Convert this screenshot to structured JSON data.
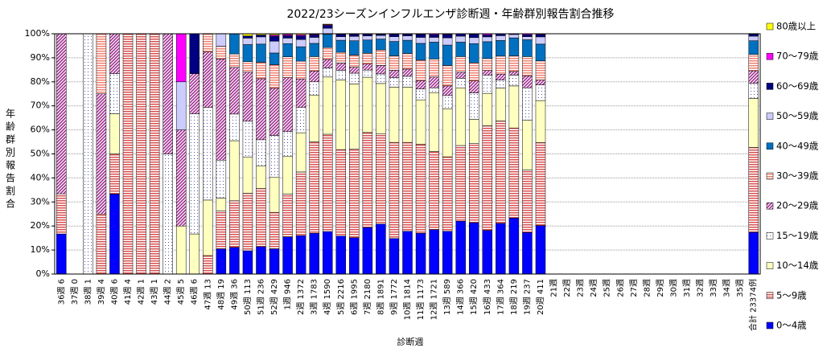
{
  "chart_data": {
    "type": "stacked_bar",
    "title": "2022/23シーズンインフルエンザ診断週・年齢群別報告割合推移",
    "x_label": "診断週",
    "y_label": "年齢群別報告割合",
    "categories": [
      "36週 6",
      "37週 0",
      "38週 1",
      "39週 4",
      "40週 6",
      "41週 4",
      "42週 1",
      "43週 1",
      "44週 2",
      "45週 5",
      "46週 6",
      "47週 13",
      "48週 19",
      "49週 36",
      "50週 113",
      "51週 236",
      "52週 429",
      "1週 946",
      "2週 1372",
      "3週 1783",
      "4週 1590",
      "5週 2216",
      "6週 1995",
      "7週 2180",
      "8週 1891",
      "9週 1772",
      "10週 1814",
      "11週 1173",
      "12週 1721",
      "13週 589",
      "14週 366",
      "15週 420",
      "16週 433",
      "17週 364",
      "18週 219",
      "19週 237",
      "20週 411",
      "21週",
      "22週",
      "23週",
      "24週",
      "25週",
      "26週",
      "27週",
      "28週",
      "29週",
      "30週",
      "31週",
      "32週",
      "33週",
      "34週",
      "35週",
      "合計 23374例"
    ],
    "ylim": [
      0,
      100
    ],
    "yticks": [
      {
        "value": 0,
        "label": "0%"
      },
      {
        "value": 10,
        "label": "10%"
      },
      {
        "value": 20,
        "label": "20%"
      },
      {
        "value": 30,
        "label": "30%"
      },
      {
        "value": 40,
        "label": "40%"
      },
      {
        "value": 50,
        "label": "50%"
      },
      {
        "value": 60,
        "label": "60%"
      },
      {
        "value": 70,
        "label": "70%"
      },
      {
        "value": 80,
        "label": "80%"
      },
      {
        "value": 90,
        "label": "90%"
      },
      {
        "value": 100,
        "label": "100%"
      }
    ],
    "grid": true,
    "legend": "right",
    "series": [
      {
        "name": "0〜4歳",
        "color": "#0000ff",
        "pattern": "solid",
        "values": [
          16.7,
          0,
          0,
          0,
          33.3,
          0,
          0,
          0,
          0,
          0,
          0,
          0,
          10.5,
          11.1,
          9.7,
          11.4,
          10.5,
          15.5,
          16.0,
          17,
          17.7,
          15.8,
          15.1,
          19.4,
          20.8,
          14.8,
          17.8,
          17,
          18.5,
          17.8,
          22,
          21.4,
          18.2,
          21.1,
          23.3,
          17.3,
          20.2,
          null,
          null,
          null,
          null,
          null,
          null,
          null,
          null,
          null,
          null,
          null,
          null,
          null,
          null,
          null,
          17.4
        ]
      },
      {
        "name": "5〜9歳",
        "color": "#d85050",
        "pattern": "hstripe",
        "values": [
          16.7,
          0,
          0,
          25,
          16.7,
          100,
          100,
          100,
          0,
          0,
          0,
          7.7,
          15.8,
          19.4,
          23.9,
          24.2,
          15.2,
          17.8,
          26.5,
          38,
          40.5,
          36,
          37,
          39.5,
          37.5,
          40,
          37,
          37,
          32.5,
          31,
          31.5,
          33,
          43.5,
          42.6,
          37.5,
          26,
          34.5,
          null,
          null,
          null,
          null,
          null,
          null,
          null,
          null,
          null,
          null,
          null,
          null,
          null,
          null,
          null,
          35.3
        ]
      },
      {
        "name": "10〜14歳",
        "color": "#ffffc0",
        "pattern": "solid",
        "values": [
          0,
          0,
          0,
          0,
          16.7,
          0,
          0,
          0,
          0,
          20,
          16.7,
          23.1,
          5.3,
          25,
          15,
          9.3,
          14.5,
          15.6,
          16.3,
          19.5,
          23.8,
          29,
          27,
          23,
          21,
          23,
          23,
          18.5,
          24.5,
          20,
          24,
          10,
          13.5,
          13.7,
          17.5,
          20.7,
          17.5,
          null,
          null,
          null,
          null,
          null,
          null,
          null,
          null,
          null,
          null,
          null,
          null,
          null,
          null,
          null,
          20.4
        ]
      },
      {
        "name": "15〜19歳",
        "color": "#5050a0",
        "pattern": "dots",
        "values": [
          0,
          0,
          100,
          0,
          16.7,
          0,
          0,
          0,
          50,
          0,
          50,
          38.5,
          15.8,
          11.1,
          15,
          11,
          17.5,
          10.4,
          10.5,
          5.5,
          3.8,
          4,
          4.5,
          3,
          4,
          4,
          4.5,
          4.5,
          2,
          5.5,
          4,
          11,
          7.5,
          3.3,
          4.5,
          13.5,
          6.5,
          null,
          null,
          null,
          null,
          null,
          null,
          null,
          null,
          null,
          null,
          null,
          null,
          null,
          null,
          null,
          6.3
        ]
      },
      {
        "name": "20〜29歳",
        "color": "#a03090",
        "pattern": "diag",
        "values": [
          66.6,
          0,
          0,
          50,
          16.6,
          0,
          0,
          0,
          50,
          40,
          16.7,
          23.1,
          42.1,
          19.4,
          20.4,
          25.4,
          19.6,
          22.4,
          11.9,
          4.5,
          3.5,
          3,
          2.5,
          2.5,
          3.5,
          3,
          3,
          3.5,
          4.5,
          4,
          2.5,
          5,
          2,
          2.5,
          1.5,
          5,
          2,
          null,
          null,
          null,
          null,
          null,
          null,
          null,
          null,
          null,
          null,
          null,
          null,
          null,
          null,
          null,
          5.2
        ]
      },
      {
        "name": "30〜39歳",
        "color": "#f08070",
        "pattern": "hstripe",
        "values": [
          0,
          0,
          0,
          25,
          0,
          0,
          0,
          0,
          0,
          0,
          0,
          7.7,
          5.3,
          5.6,
          4.4,
          6.8,
          9.8,
          8.7,
          7.4,
          6,
          5,
          4.5,
          5,
          4.5,
          6.5,
          6,
          6.5,
          8.5,
          7.5,
          8.5,
          6.5,
          7.5,
          5,
          7.5,
          6.5,
          8,
          8,
          null,
          null,
          null,
          null,
          null,
          null,
          null,
          null,
          null,
          null,
          null,
          null,
          null,
          null,
          null,
          6.8
        ]
      },
      {
        "name": "40〜49歳",
        "color": "#0070c0",
        "pattern": "solid",
        "values": [
          0,
          0,
          0,
          0,
          0,
          0,
          0,
          0,
          0,
          0,
          0,
          0,
          0,
          8.3,
          7.1,
          7.6,
          4.9,
          5.5,
          6,
          5.5,
          5.5,
          5,
          6,
          5.5,
          4.5,
          6,
          5.5,
          7,
          7,
          8.5,
          6,
          8,
          7,
          6.5,
          7.5,
          7,
          7,
          null,
          null,
          null,
          null,
          null,
          null,
          null,
          null,
          null,
          null,
          null,
          null,
          null,
          null,
          null,
          5.7
        ]
      },
      {
        "name": "50〜59歳",
        "color": "#ccccff",
        "pattern": "solid",
        "values": [
          0,
          0,
          0,
          0,
          0,
          0,
          0,
          0,
          0,
          20,
          0,
          0,
          5.3,
          0,
          2.7,
          3.0,
          4.9,
          2.3,
          3,
          2.5,
          2.5,
          1.5,
          1.8,
          1.7,
          1.5,
          2,
          1.8,
          2.5,
          2,
          3,
          2.5,
          2.5,
          2,
          2,
          1.4,
          1.3,
          3,
          null,
          null,
          null,
          null,
          null,
          null,
          null,
          null,
          null,
          null,
          null,
          null,
          null,
          null,
          null,
          1.9
        ]
      },
      {
        "name": "60〜69歳",
        "color": "#000080",
        "pattern": "solid",
        "values": [
          0,
          0,
          0,
          0,
          0,
          0,
          0,
          0,
          0,
          0,
          16.6,
          0,
          0,
          0,
          0.9,
          0.8,
          2.1,
          1,
          1.5,
          1,
          1.2,
          1,
          0.8,
          0.7,
          0.5,
          1,
          0.7,
          1.2,
          1.1,
          1.4,
          1,
          1.4,
          0.8,
          0.8,
          0.3,
          0.8,
          1,
          null,
          null,
          null,
          null,
          null,
          null,
          null,
          null,
          null,
          null,
          null,
          null,
          null,
          null,
          null,
          0.8
        ]
      },
      {
        "name": "70〜79歳",
        "color": "#ff00ff",
        "pattern": "solid",
        "values": [
          0,
          0,
          0,
          0,
          0,
          0,
          0,
          0,
          0,
          20,
          0,
          0,
          0,
          0,
          0,
          0,
          0.5,
          0.5,
          0.5,
          0.3,
          0.3,
          0,
          0.2,
          0.1,
          0.1,
          0.1,
          0.1,
          0.2,
          0.3,
          0.2,
          0,
          0.2,
          0.5,
          0,
          0,
          0.4,
          0.3,
          null,
          null,
          null,
          null,
          null,
          null,
          null,
          null,
          null,
          null,
          null,
          null,
          null,
          null,
          null,
          0.2
        ]
      },
      {
        "name": "80歳以上",
        "color": "#ffff00",
        "pattern": "solid",
        "values": [
          0,
          0,
          0,
          0,
          0,
          0,
          0,
          0,
          0,
          0,
          0,
          0,
          0,
          0,
          0.9,
          0.5,
          0.5,
          0.3,
          0.4,
          0.2,
          0.2,
          0.2,
          0.1,
          0.1,
          0.1,
          0.1,
          0.1,
          0.1,
          0.1,
          0.1,
          0,
          0,
          0,
          0,
          0,
          0,
          0,
          null,
          null,
          null,
          null,
          null,
          null,
          null,
          null,
          null,
          null,
          null,
          null,
          null,
          null,
          null,
          0.1
        ]
      }
    ]
  }
}
